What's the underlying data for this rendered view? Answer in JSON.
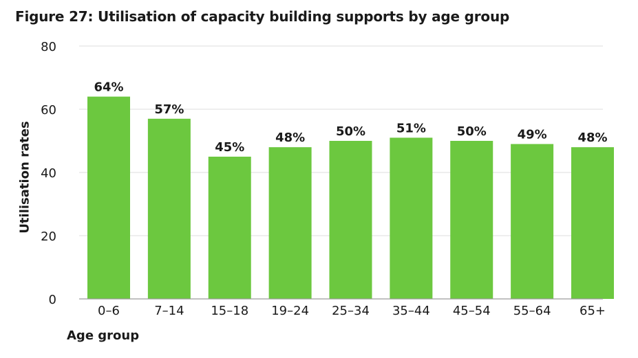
{
  "figure": {
    "title": "Figure 27: Utilisation of capacity building supports by age group"
  },
  "chart_data": {
    "type": "bar",
    "title": "Figure 27: Utilisation of capacity building supports by age group",
    "xlabel": "Age group",
    "ylabel": "Utilisation rates",
    "categories": [
      "0–6",
      "7–14",
      "15–18",
      "19–24",
      "25–34",
      "35–44",
      "45–54",
      "55–64",
      "65+"
    ],
    "values": [
      64,
      57,
      45,
      48,
      50,
      51,
      50,
      49,
      48
    ],
    "data_labels": [
      "64%",
      "57%",
      "45%",
      "48%",
      "50%",
      "51%",
      "50%",
      "49%",
      "48%"
    ],
    "ylim": [
      0,
      80
    ],
    "yticks": [
      0,
      20,
      40,
      60,
      80
    ],
    "ytick_labels": [
      "0",
      "20",
      "40",
      "60",
      "80"
    ],
    "grid": true,
    "legend": "none",
    "bar_color": "#6cc83f",
    "grid_color": "#dcdcdc",
    "axis_color": "#9a9a9a"
  }
}
